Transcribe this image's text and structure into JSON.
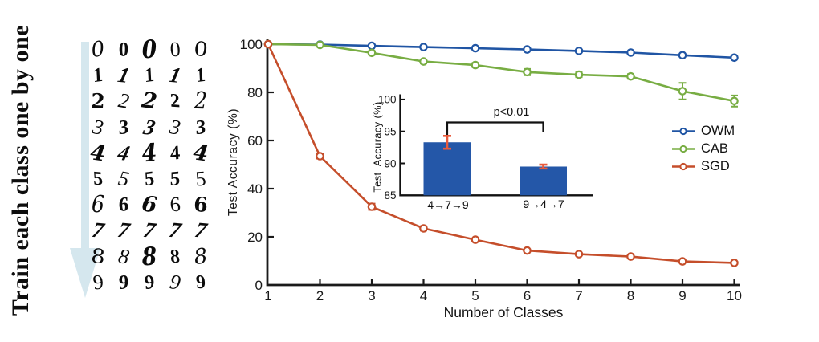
{
  "left_panel": {
    "vertical_title": "Train each class one by one",
    "arrow_color": "#d5e7ee",
    "digits": [
      "0",
      "1",
      "2",
      "3",
      "4",
      "5",
      "6",
      "7",
      "8",
      "9"
    ],
    "samples_per_digit": 5
  },
  "chart_data": [
    {
      "type": "line",
      "title": "",
      "xlabel": "Number of Classes",
      "ylabel": "Test Accuracy (%)",
      "xlim": [
        1,
        10
      ],
      "ylim": [
        0,
        100
      ],
      "xticks": [
        1,
        2,
        3,
        4,
        5,
        6,
        7,
        8,
        9,
        10
      ],
      "yticks": [
        0,
        20,
        40,
        60,
        80,
        100
      ],
      "grid": false,
      "legend_position": "right-middle",
      "x": [
        1,
        2,
        3,
        4,
        5,
        6,
        7,
        8,
        9,
        10
      ],
      "series": [
        {
          "name": "OWM",
          "color": "#2055a4",
          "values": [
            100,
            99.8,
            99.3,
            98.8,
            98.3,
            97.8,
            97.2,
            96.5,
            95.4,
            94.4
          ],
          "err": [
            0,
            0.2,
            0.3,
            0.3,
            0.3,
            0.3,
            0.4,
            0.4,
            0.5,
            0.5
          ]
        },
        {
          "name": "CAB",
          "color": "#78ad43",
          "values": [
            100,
            99.7,
            96.4,
            92.8,
            91.3,
            88.4,
            87.3,
            86.6,
            80.5,
            76.4
          ],
          "err": [
            0,
            0.3,
            0.8,
            0.8,
            0.9,
            1.3,
            1.0,
            1.0,
            3.4,
            2.3
          ]
        },
        {
          "name": "SGD",
          "color": "#c54e2b",
          "values": [
            100,
            53.5,
            32.5,
            23.5,
            18.8,
            14.3,
            12.8,
            11.8,
            9.8,
            9.2
          ],
          "err": [
            0,
            1.0,
            1.3,
            0.9,
            0.6,
            0.4,
            0.4,
            0.3,
            0.3,
            0.3
          ]
        }
      ]
    },
    {
      "type": "bar",
      "ylabel": "Test  Accuracy (%)",
      "categories": [
        "4→7→9",
        "9→4→7"
      ],
      "values": [
        93.3,
        89.5
      ],
      "errors": [
        1.0,
        0.3
      ],
      "ylim": [
        85,
        100
      ],
      "yticks": [
        85,
        90,
        95,
        100
      ],
      "bar_color": "#2457a8",
      "error_color": "#e85a3c",
      "annotation": "p<0.01"
    }
  ]
}
